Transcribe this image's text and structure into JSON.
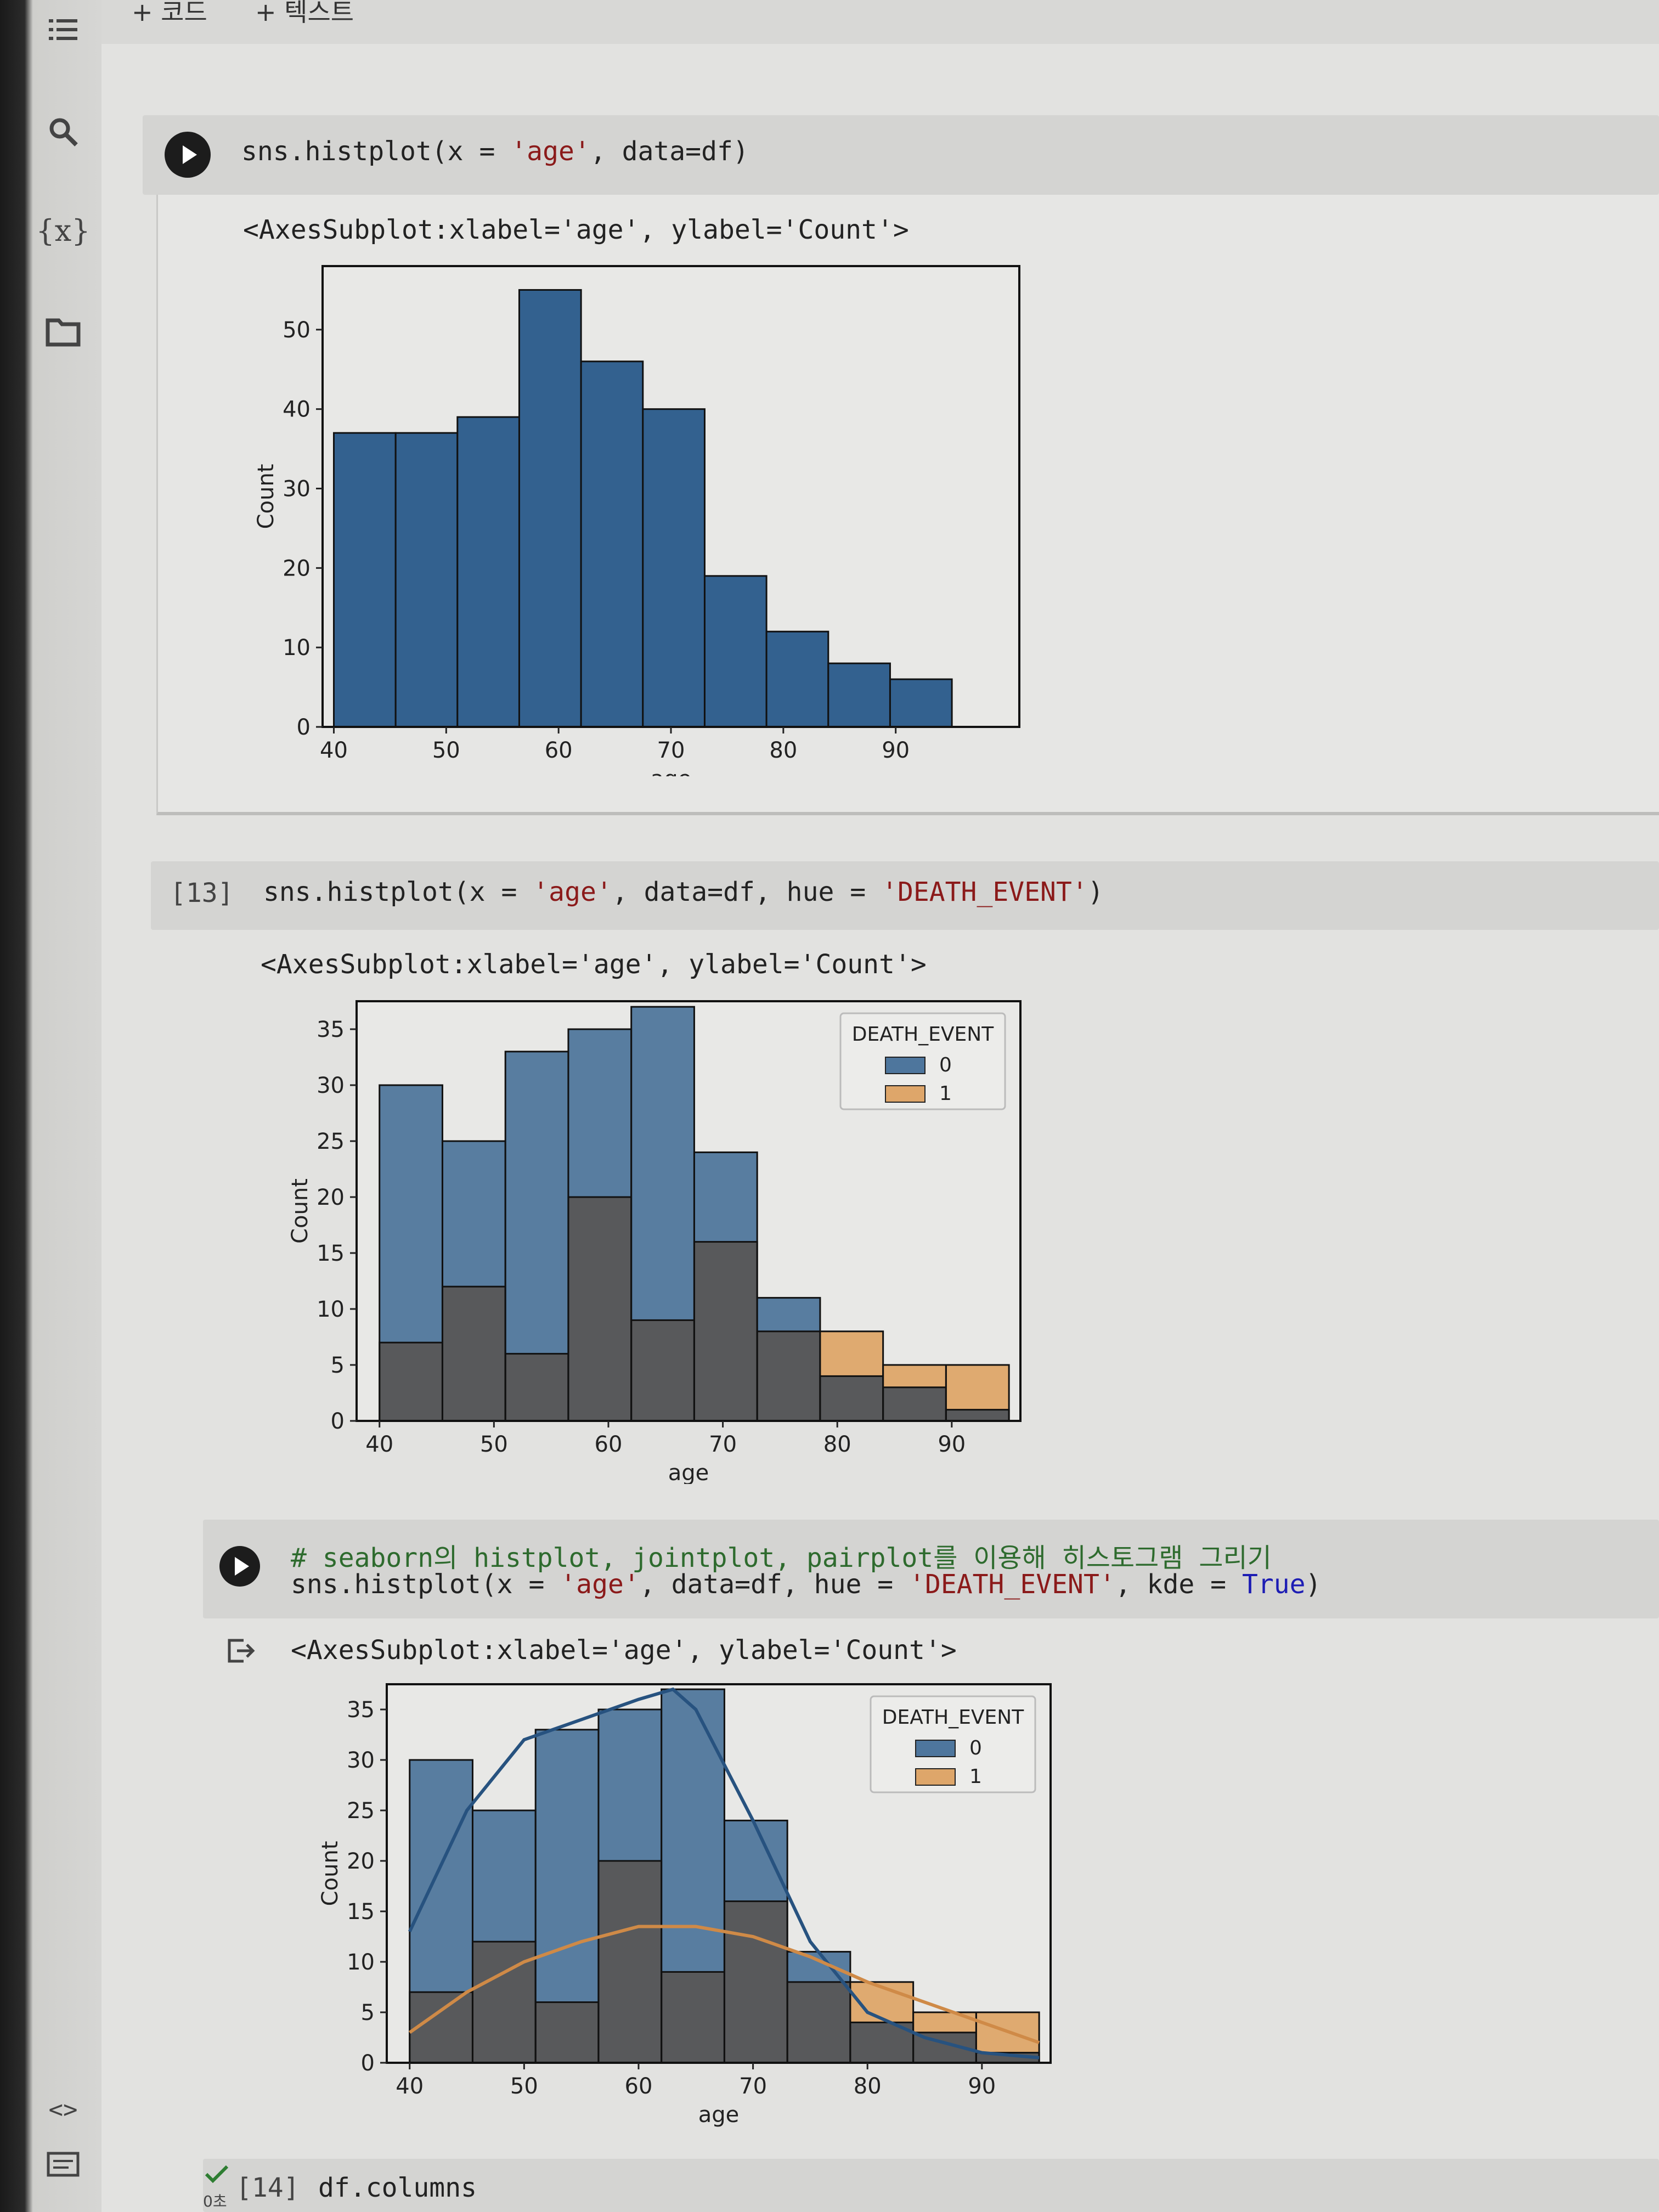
{
  "toolbar": {
    "add_code": "+ 코드",
    "add_text": "+ 텍스트"
  },
  "sidebar": {
    "toc_icon": "list-icon",
    "search_icon": "search-icon",
    "variables_icon": "variables-icon",
    "variables_label": "{x}",
    "files_icon": "folder-icon",
    "code_snippets_label": "<>",
    "terminal_icon": "terminal-icon"
  },
  "cells": [
    {
      "exec_count": "",
      "code": {
        "fn": "sns.histplot(x = ",
        "arg1": "'age'",
        "rest": ", data=df)"
      },
      "output_text": "<AxesSubplot:xlabel='age', ylabel='Count'>"
    },
    {
      "exec_count": "[13]",
      "code": {
        "fn": "sns.histplot(x = ",
        "arg1": "'age'",
        "mid": ", data=df, hue = ",
        "arg2": "'DEATH_EVENT'",
        "rest": ")"
      },
      "output_text": "<AxesSubplot:xlabel='age', ylabel='Count'>"
    },
    {
      "exec_count": "",
      "comment": "# seaborn의 histplot, jointplot, pairplot를 이용해 히스토그램 그리기",
      "code": {
        "fn": "sns.histplot(x = ",
        "arg1": "'age'",
        "mid": ", data=df, hue = ",
        "arg2": "'DEATH_EVENT'",
        "mid2": ", kde = ",
        "kw": "True",
        "rest": ")"
      },
      "output_text": "<AxesSubplot:xlabel='age', ylabel='Count'>"
    },
    {
      "exec_count": "[14]",
      "status": "0초",
      "code": {
        "fn": "df.columns"
      }
    }
  ],
  "colors": {
    "blue": "#33618f",
    "orange": "#dc9a53",
    "overlap": "#58595b",
    "kde_blue": "#27527f",
    "kde_orange": "#cf8a47"
  },
  "chart_data": [
    {
      "type": "bar",
      "xlabel": "age",
      "ylabel": "Count",
      "xticks": [
        40,
        50,
        60,
        70,
        80,
        90
      ],
      "yticks": [
        0,
        10,
        20,
        30,
        40,
        50
      ],
      "xlim": [
        39,
        101
      ],
      "ylim": [
        0,
        58
      ],
      "bin_edges": [
        40,
        45.5,
        51,
        56.5,
        62,
        67.5,
        73,
        78.5,
        84,
        89.5,
        95
      ],
      "series": [
        {
          "values": [
            37,
            37,
            39,
            55,
            46,
            40,
            19,
            12,
            8,
            6
          ]
        }
      ]
    },
    {
      "type": "bar",
      "xlabel": "age",
      "ylabel": "Count",
      "legend": {
        "title": "DEATH_EVENT",
        "entries": [
          "0",
          "1"
        ],
        "placement": "top-right"
      },
      "xticks": [
        40,
        50,
        60,
        70,
        80,
        90
      ],
      "yticks": [
        0,
        5,
        10,
        15,
        20,
        25,
        30,
        35
      ],
      "xlim": [
        38,
        96
      ],
      "ylim": [
        0,
        37.5
      ],
      "bin_edges": [
        40,
        45.5,
        51,
        56.5,
        62,
        67.5,
        73,
        78.5,
        84,
        89.5,
        95
      ],
      "series": [
        {
          "name": "0",
          "values": [
            30,
            25,
            33,
            35,
            37,
            24,
            11,
            4,
            3,
            1
          ]
        },
        {
          "name": "1",
          "values": [
            7,
            12,
            6,
            20,
            9,
            16,
            8,
            8,
            5,
            5
          ]
        }
      ]
    },
    {
      "type": "bar",
      "xlabel": "age",
      "ylabel": "Count",
      "legend": {
        "title": "DEATH_EVENT",
        "entries": [
          "0",
          "1"
        ],
        "placement": "top-right"
      },
      "xticks": [
        40,
        50,
        60,
        70,
        80,
        90
      ],
      "yticks": [
        0,
        5,
        10,
        15,
        20,
        25,
        30,
        35
      ],
      "xlim": [
        38,
        96
      ],
      "ylim": [
        0,
        37.5
      ],
      "bin_edges": [
        40,
        45.5,
        51,
        56.5,
        62,
        67.5,
        73,
        78.5,
        84,
        89.5,
        95
      ],
      "series": [
        {
          "name": "0",
          "values": [
            30,
            25,
            33,
            35,
            37,
            24,
            11,
            4,
            3,
            1
          ]
        },
        {
          "name": "1",
          "values": [
            7,
            12,
            6,
            20,
            9,
            16,
            8,
            8,
            5,
            5
          ]
        }
      ],
      "kde": [
        {
          "name": "0",
          "x": [
            40,
            45,
            50,
            55,
            60,
            63,
            65,
            70,
            75,
            80,
            85,
            90,
            95
          ],
          "y": [
            13,
            25,
            32,
            34,
            36,
            37,
            35,
            24,
            12,
            5,
            2.5,
            1,
            0.5
          ]
        },
        {
          "name": "1",
          "x": [
            40,
            45,
            50,
            55,
            60,
            65,
            70,
            75,
            80,
            85,
            90,
            95
          ],
          "y": [
            3,
            7,
            10,
            12,
            13.5,
            13.5,
            12.5,
            10.5,
            8,
            6,
            4,
            2
          ]
        }
      ]
    }
  ]
}
